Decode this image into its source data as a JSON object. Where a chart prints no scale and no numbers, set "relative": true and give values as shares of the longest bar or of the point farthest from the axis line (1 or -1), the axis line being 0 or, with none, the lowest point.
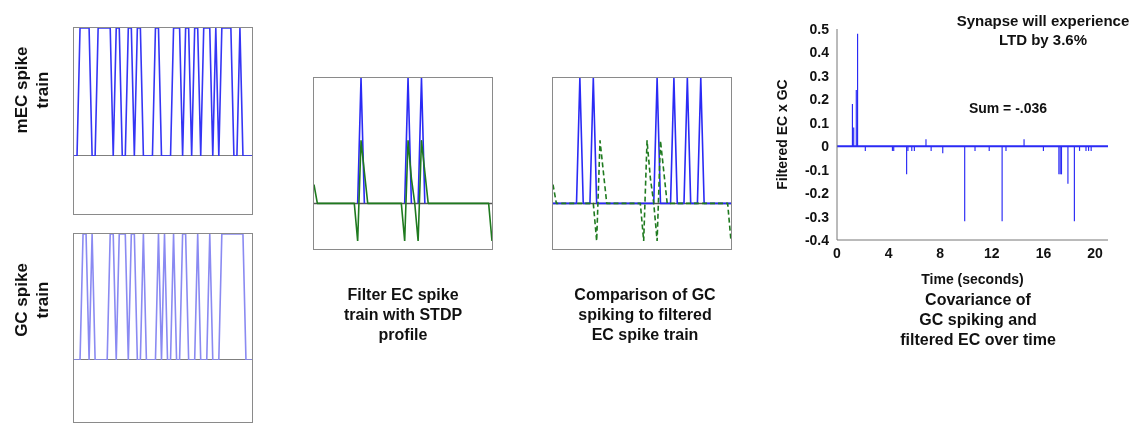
{
  "chart_data": [
    {
      "type": "line",
      "relative": true,
      "ylabel": "mEC spike train",
      "color": "#3535f5",
      "categories": [
        null,
        null,
        null,
        null,
        null,
        null,
        null,
        null,
        null,
        null,
        null,
        null,
        null,
        null,
        null,
        null,
        null,
        null,
        null,
        null,
        null,
        null,
        null,
        null,
        null,
        null,
        null,
        null,
        null,
        null,
        null,
        null,
        null,
        null,
        null,
        null,
        null,
        null,
        null,
        null,
        null,
        null,
        null,
        null,
        null,
        null,
        null,
        null,
        null,
        null,
        null,
        null,
        null,
        null,
        null,
        null,
        null,
        null,
        null,
        null
      ],
      "values": [
        0,
        0,
        1,
        1,
        1,
        1,
        0,
        0,
        1,
        1,
        1,
        1,
        1,
        0,
        1,
        1,
        0,
        0,
        1,
        1,
        0,
        1,
        1,
        0,
        0,
        0,
        0,
        1,
        1,
        0,
        0,
        0,
        0,
        1,
        1,
        1,
        0,
        1,
        1,
        0,
        1,
        1,
        0,
        1,
        1,
        1,
        0,
        1,
        0,
        1,
        1,
        1,
        1,
        0,
        0,
        1,
        0,
        0,
        0,
        0
      ]
    },
    {
      "type": "line",
      "relative": true,
      "ylabel": "GC spike train",
      "color": "#8a8af2",
      "categories": [
        null,
        null,
        null,
        null,
        null,
        null,
        null,
        null,
        null,
        null,
        null,
        null,
        null,
        null,
        null,
        null,
        null,
        null,
        null,
        null,
        null,
        null,
        null,
        null,
        null,
        null,
        null,
        null,
        null,
        null,
        null,
        null,
        null,
        null,
        null,
        null,
        null,
        null,
        null,
        null,
        null,
        null,
        null,
        null,
        null,
        null,
        null,
        null,
        null,
        null,
        null,
        null,
        null,
        null,
        null,
        null,
        null,
        null,
        null,
        null
      ],
      "values": [
        0,
        0,
        0,
        1,
        1,
        0,
        1,
        0,
        0,
        0,
        0,
        0,
        1,
        1,
        0,
        1,
        1,
        1,
        0,
        1,
        1,
        0,
        0,
        1,
        0,
        0,
        0,
        0,
        1,
        0,
        1,
        0,
        0,
        1,
        0,
        0,
        1,
        1,
        0,
        0,
        0,
        1,
        0,
        0,
        0,
        1,
        0,
        0,
        0,
        1,
        1,
        1,
        1,
        1,
        1,
        1,
        1,
        0,
        0,
        0
      ]
    },
    {
      "type": "line",
      "relative": true,
      "subtitle": "Filter EC spike\ntrain with STDP\nprofile",
      "categories": [
        null,
        null,
        null,
        null,
        null,
        null,
        null,
        null,
        null,
        null,
        null,
        null,
        null,
        null,
        null,
        null,
        null,
        null,
        null,
        null,
        null,
        null,
        null,
        null,
        null,
        null,
        null,
        null,
        null,
        null,
        null,
        null,
        null,
        null,
        null,
        null,
        null,
        null,
        null,
        null,
        null,
        null,
        null,
        null,
        null,
        null,
        null,
        null,
        null,
        null,
        null,
        null,
        null,
        null
      ],
      "series": [
        {
          "color": "#2a2af5",
          "values": [
            null,
            null,
            null,
            null,
            null,
            null,
            null,
            null,
            null,
            null,
            null,
            null,
            null,
            0,
            1,
            0,
            null,
            null,
            null,
            null,
            null,
            null,
            null,
            null,
            null,
            null,
            null,
            0,
            1,
            0,
            null,
            0,
            1,
            0,
            null,
            null,
            null,
            null,
            null,
            null,
            null,
            null,
            null,
            null,
            null,
            null,
            null,
            null,
            null,
            null,
            null,
            null,
            null,
            null
          ]
        },
        {
          "color": "#1f7a1f",
          "line_style": "solid",
          "values": [
            0.15,
            0,
            0,
            0,
            0,
            0,
            0,
            0,
            0,
            0,
            0,
            0,
            0,
            -0.3,
            0.5,
            0.25,
            0,
            0,
            0,
            0,
            0,
            0,
            0,
            0,
            0,
            0,
            0,
            -0.3,
            0.5,
            0.2,
            0,
            -0.3,
            0.5,
            0.25,
            0,
            0,
            0,
            0,
            0,
            0,
            0,
            0,
            0,
            0,
            0,
            0,
            0,
            0,
            0,
            0,
            0,
            0,
            0,
            -0.3
          ]
        }
      ]
    },
    {
      "type": "line",
      "relative": true,
      "subtitle": "Comparison of GC\nspiking to filtered\nEC spike train",
      "categories": [
        null,
        null,
        null,
        null,
        null,
        null,
        null,
        null,
        null,
        null,
        null,
        null,
        null,
        null,
        null,
        null,
        null,
        null,
        null,
        null,
        null,
        null,
        null,
        null,
        null,
        null,
        null,
        null,
        null,
        null,
        null,
        null,
        null,
        null,
        null,
        null,
        null,
        null,
        null,
        null,
        null,
        null,
        null,
        null,
        null,
        null,
        null,
        null,
        null,
        null,
        null,
        null,
        null,
        null
      ],
      "series": [
        {
          "color": "#2a2af5",
          "values": [
            0,
            0,
            0,
            0,
            0,
            0,
            0,
            0,
            1,
            0,
            0,
            0,
            1,
            0,
            0,
            0,
            0,
            0,
            0,
            0,
            0,
            0,
            0,
            0,
            0,
            0,
            0,
            0,
            0,
            0,
            0,
            1,
            0,
            0,
            0,
            0,
            1,
            0,
            0,
            0,
            1,
            0,
            0,
            0,
            1,
            0,
            0,
            0,
            0,
            0,
            0,
            0,
            0,
            0
          ]
        },
        {
          "color": "#1f7a1f",
          "line_style": "dashed",
          "values": [
            0.15,
            0,
            0,
            0,
            0,
            0,
            0,
            0,
            0,
            0,
            0,
            0,
            0,
            -0.3,
            0.5,
            0.25,
            0,
            0,
            0,
            0,
            0,
            0,
            0,
            0,
            0,
            0,
            0,
            -0.3,
            0.5,
            0.2,
            0,
            -0.3,
            0.5,
            0.25,
            0,
            0,
            0,
            0,
            0,
            0,
            0,
            0,
            0,
            0,
            0,
            0,
            0,
            0,
            0,
            0,
            0,
            0,
            0,
            -0.3
          ]
        }
      ]
    },
    {
      "type": "bar",
      "title": "Synapse will experience LTD by 3.6%",
      "subtitle": "Covariance of\nGC spiking and\nfiltered EC over time",
      "xlabel": "Time (seconds)",
      "ylabel": "Filtered EC x GC",
      "annotations": [
        "Sum = -.036"
      ],
      "color": "#2a2af5",
      "x": [
        1.2,
        1.3,
        1.5,
        1.6,
        2.2,
        4.3,
        4.4,
        5.4,
        5.5,
        5.8,
        6.0,
        6.9,
        7.3,
        8.2,
        9.9,
        10.7,
        11.8,
        12.8,
        13.1,
        14.5,
        16.0,
        17.2,
        17.3,
        17.4,
        17.9,
        18.4,
        18.8,
        19.3,
        19.5,
        19.7
      ],
      "values": [
        0.18,
        0.08,
        0.24,
        0.48,
        -0.02,
        -0.02,
        -0.02,
        -0.12,
        -0.02,
        -0.02,
        -0.02,
        0.03,
        -0.02,
        -0.03,
        -0.32,
        -0.02,
        -0.02,
        -0.32,
        -0.02,
        0.03,
        -0.02,
        -0.12,
        -0.12,
        -0.12,
        -0.16,
        -0.32,
        -0.02,
        -0.02,
        -0.02,
        -0.02
      ],
      "xlim": [
        0,
        21
      ],
      "xticks": [
        0,
        4,
        8,
        12,
        16,
        20
      ],
      "ylim": [
        -0.4,
        0.5
      ],
      "yticks": [
        -0.4,
        -0.3,
        -0.2,
        -0.1,
        0,
        0.1,
        0.2,
        0.3,
        0.4,
        0.5
      ],
      "ref_lines": [
        {
          "axis": "y",
          "value": 0,
          "color": "#2a2af5"
        }
      ]
    }
  ]
}
